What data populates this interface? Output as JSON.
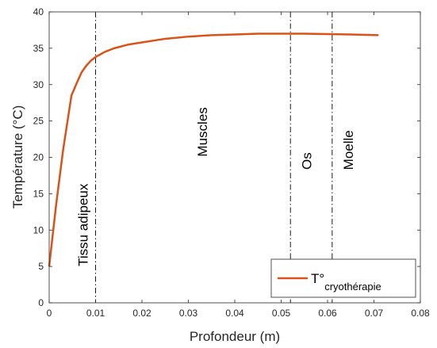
{
  "chart_data": {
    "type": "line",
    "title": "",
    "xlabel": "Profondeur (m)",
    "ylabel": "Température (°C)",
    "xlim": [
      0,
      0.08
    ],
    "ylim": [
      0,
      40
    ],
    "xticks": [
      0,
      0.01,
      0.02,
      0.03,
      0.04,
      0.05,
      0.06,
      0.07,
      0.08
    ],
    "xtick_labels": [
      "0",
      "0.01",
      "0.02",
      "0.03",
      "0.04",
      "0.05",
      "0.06",
      "0.07",
      "0.08"
    ],
    "yticks": [
      0,
      5,
      10,
      15,
      20,
      25,
      30,
      35,
      40
    ],
    "ytick_labels": [
      "0",
      "5",
      "10",
      "15",
      "20",
      "25",
      "30",
      "35",
      "40"
    ],
    "grid": false,
    "series": [
      {
        "legend_main": "T°",
        "legend_sub": "cryothérapie",
        "color": "#D95319",
        "x": [
          0,
          0.0015,
          0.003,
          0.0048,
          0.006,
          0.007,
          0.008,
          0.009,
          0.01,
          0.012,
          0.014,
          0.017,
          0.02,
          0.025,
          0.03,
          0.035,
          0.04,
          0.045,
          0.05,
          0.055,
          0.06,
          0.065,
          0.071
        ],
        "y": [
          5.0,
          13.5,
          21.0,
          28.5,
          30.3,
          31.7,
          32.6,
          33.3,
          33.8,
          34.5,
          35.0,
          35.5,
          35.8,
          36.3,
          36.6,
          36.8,
          36.9,
          37.0,
          37.0,
          37.0,
          36.95,
          36.9,
          36.8
        ]
      }
    ],
    "boundaries": [
      {
        "x": 0.01,
        "style": "dash-dot"
      },
      {
        "x": 0.052,
        "style": "dash-dot"
      },
      {
        "x": 0.061,
        "style": "dash-dot"
      }
    ],
    "annotations": [
      {
        "text": "Tissu adipeux",
        "x": 0.0083,
        "y": 10.7,
        "rotation": -90
      },
      {
        "text": "Muscles",
        "x": 0.034,
        "y": 23.5,
        "rotation": -90
      },
      {
        "text": "Os",
        "x": 0.0565,
        "y": 19.5,
        "rotation": -90
      },
      {
        "text": "Moelle",
        "x": 0.0655,
        "y": 21.0,
        "rotation": -90
      }
    ],
    "legend": {
      "position": "bottom-right"
    }
  }
}
